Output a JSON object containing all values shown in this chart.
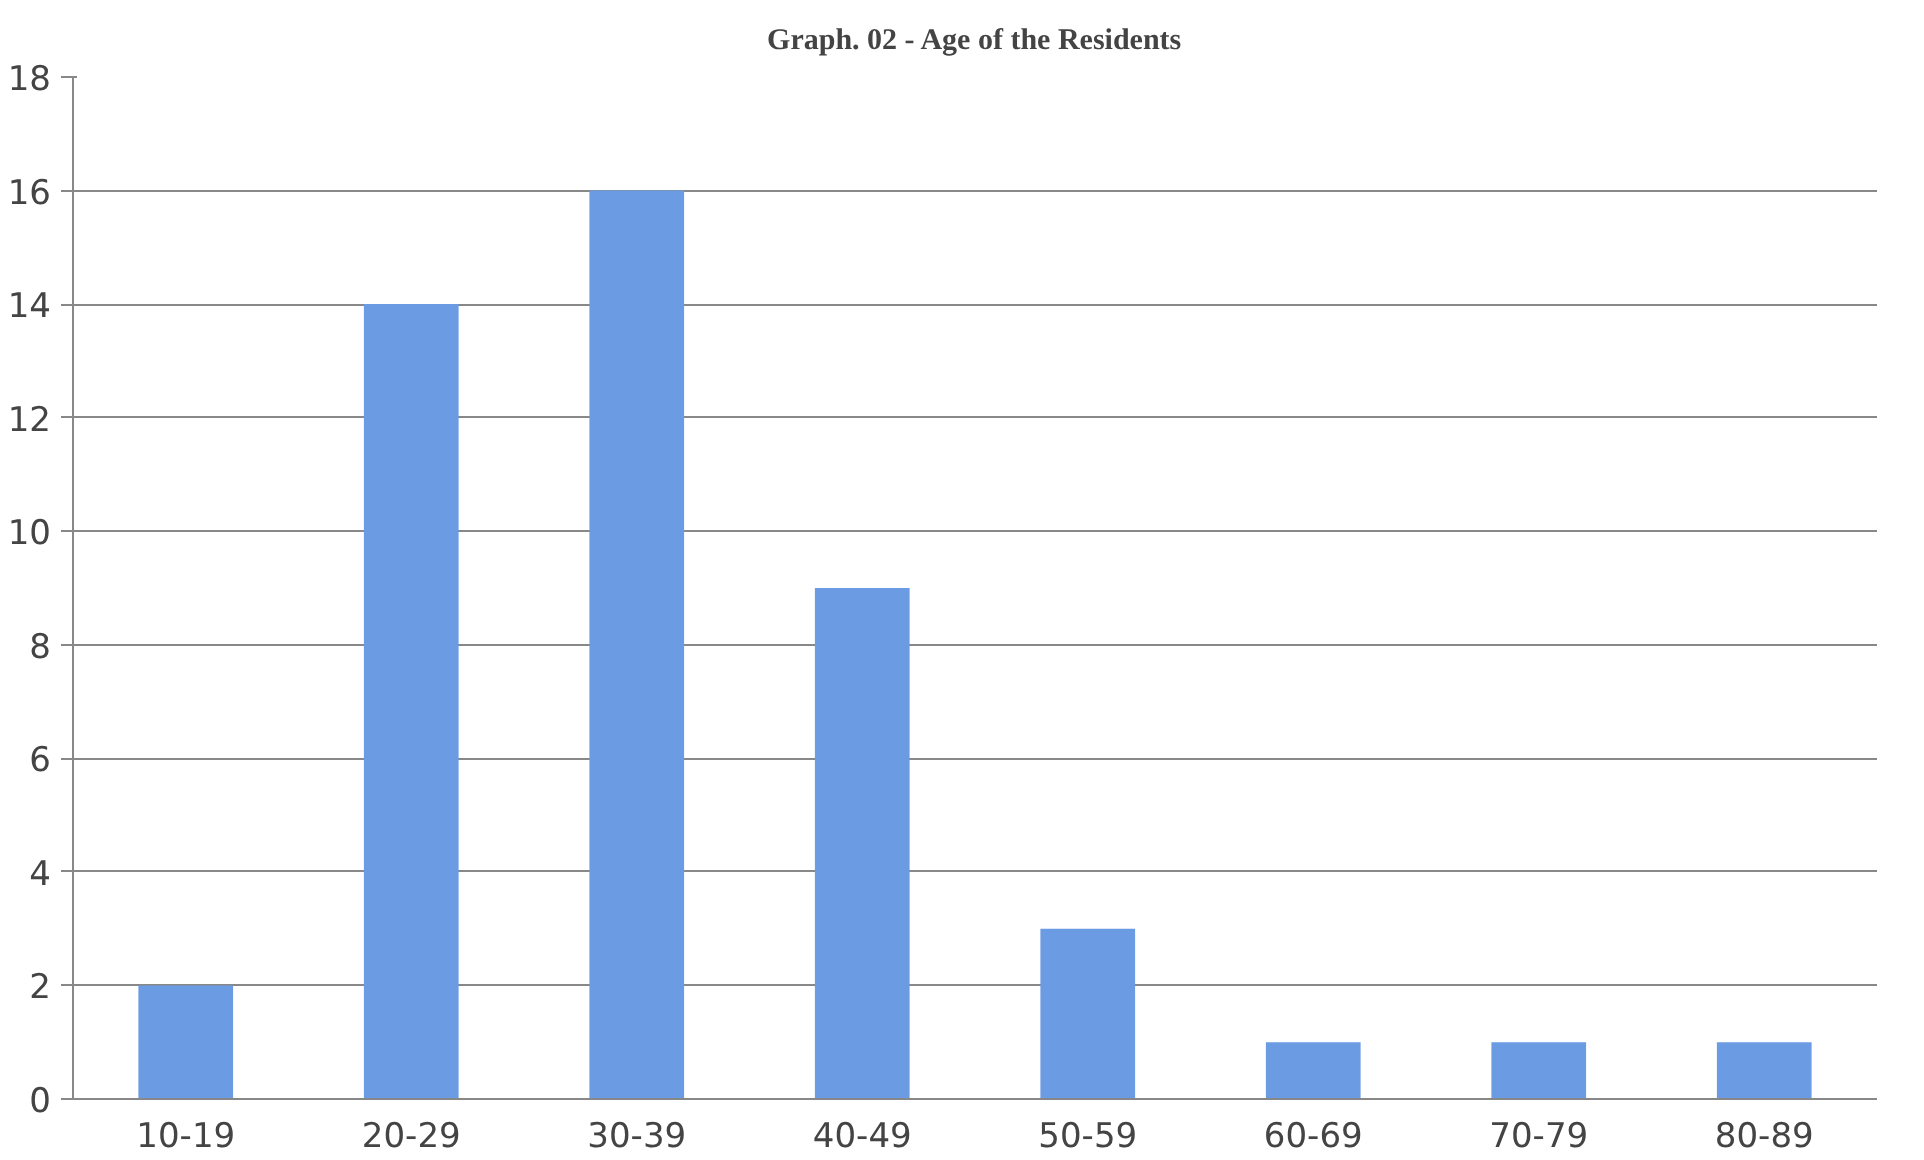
{
  "chart_data": {
    "type": "bar",
    "title": "Graph. 02 - Age of the Residents",
    "categories": [
      "10-19",
      "20-29",
      "30-39",
      "40-49",
      "50-59",
      "60-69",
      "70-79",
      "80-89"
    ],
    "values": [
      2,
      14,
      16,
      9,
      3,
      1,
      1,
      1
    ],
    "color": "#6a9be3",
    "ylim": [
      0,
      18
    ],
    "yticks": [
      0,
      2,
      4,
      6,
      8,
      10,
      12,
      14,
      16,
      18
    ],
    "grid": "y"
  }
}
